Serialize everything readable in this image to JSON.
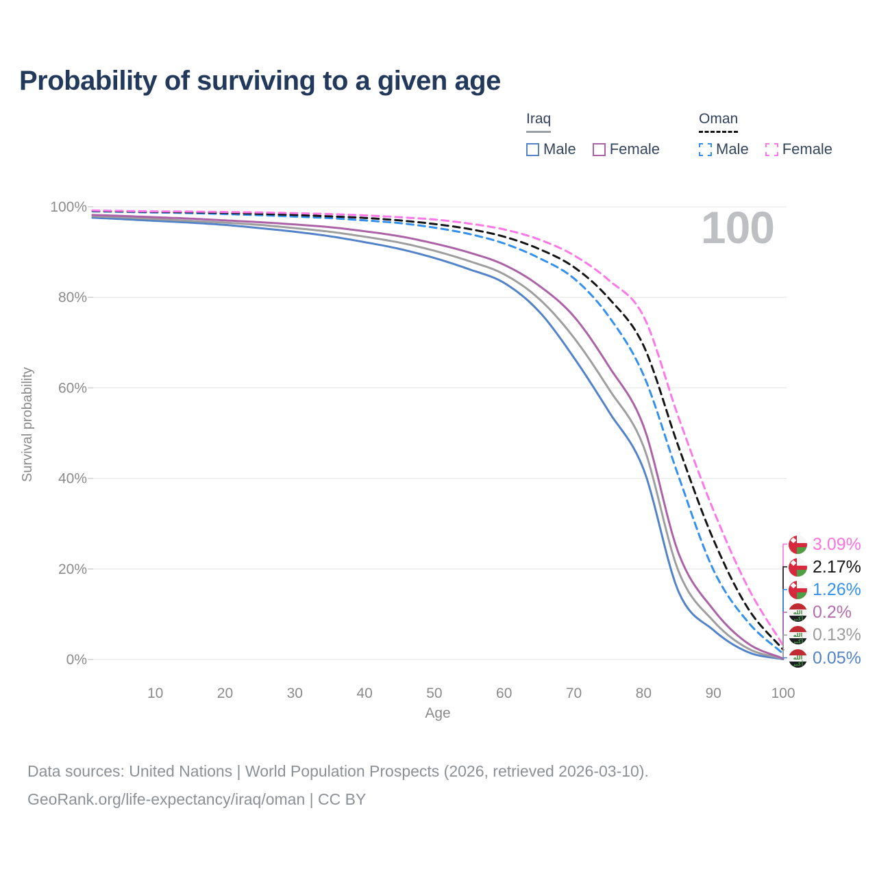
{
  "title": "Probability of surviving to a given age",
  "watermark_age": "100",
  "colors": {
    "title": "#22395c",
    "grid": "#e9e9e9",
    "tick_text": "#8a8a8a",
    "watermark": "#bdbfc2",
    "footer": "#8b9095",
    "iraq_male": "#5282c8",
    "iraq_total": "#9e9e9e",
    "iraq_female": "#ab62a6",
    "oman_male": "#3390ec",
    "oman_total": "#141414",
    "oman_female": "#fb78e6"
  },
  "legend": {
    "groups": [
      {
        "label": "Iraq",
        "line_style": "solid",
        "items": [
          {
            "label": "Male",
            "color": "#5282c8",
            "dashed": false
          },
          {
            "label": "Female",
            "color": "#ab62a6",
            "dashed": false
          }
        ]
      },
      {
        "label": "Oman",
        "line_style": "dashed",
        "items": [
          {
            "label": "Male",
            "color": "#3390ec",
            "dashed": true
          },
          {
            "label": "Female",
            "color": "#fb78e6",
            "dashed": true
          }
        ]
      }
    ]
  },
  "axes": {
    "xlabel": "Age",
    "ylabel": "Survival probability",
    "x_ticks": [
      10,
      20,
      30,
      40,
      50,
      60,
      70,
      80,
      90,
      100
    ],
    "y_ticks": [
      {
        "value": 0,
        "label": "0%"
      },
      {
        "value": 20,
        "label": "20%"
      },
      {
        "value": 40,
        "label": "40%"
      },
      {
        "value": 60,
        "label": "60%"
      },
      {
        "value": 80,
        "label": "80%"
      },
      {
        "value": 100,
        "label": "100%"
      }
    ]
  },
  "chart_data": {
    "type": "line",
    "title": "Probability of surviving to a given age",
    "xlabel": "Age",
    "ylabel": "Survival probability",
    "xlim": [
      1,
      100
    ],
    "ylim": [
      0,
      100
    ],
    "grid": true,
    "legend_position": "top-right",
    "hover_age_indicator": "100",
    "x": [
      1,
      5,
      10,
      15,
      20,
      25,
      30,
      35,
      40,
      45,
      50,
      55,
      60,
      65,
      70,
      75,
      80,
      85,
      90,
      95,
      100
    ],
    "series": [
      {
        "name": "Iraq — Male",
        "country": "Iraq",
        "sex": "Male",
        "color": "#5282c8",
        "dashed": false,
        "values": [
          97.6,
          97.3,
          96.9,
          96.5,
          96.0,
          95.3,
          94.5,
          93.5,
          92.2,
          90.7,
          88.7,
          86.2,
          83.2,
          76.9,
          66.7,
          54.8,
          42.0,
          15.0,
          6.5,
          1.6,
          0.05
        ]
      },
      {
        "name": "Iraq — Both sexes",
        "country": "Iraq",
        "sex": "Both",
        "color": "#9e9e9e",
        "dashed": false,
        "values": [
          97.9,
          97.7,
          97.3,
          96.9,
          96.5,
          96.0,
          95.3,
          94.5,
          93.4,
          92.1,
          90.3,
          88.0,
          85.1,
          79.7,
          71.1,
          59.8,
          47.0,
          19.5,
          8.5,
          2.4,
          0.13
        ]
      },
      {
        "name": "Iraq — Female",
        "country": "Iraq",
        "sex": "Female",
        "color": "#ab62a6",
        "dashed": false,
        "values": [
          98.2,
          98.0,
          97.7,
          97.4,
          97.0,
          96.6,
          96.1,
          95.5,
          94.6,
          93.5,
          91.9,
          89.9,
          87.2,
          82.6,
          75.8,
          64.8,
          51.5,
          23.5,
          11.0,
          3.5,
          0.2
        ]
      },
      {
        "name": "Oman — Male",
        "country": "Oman",
        "sex": "Male",
        "color": "#3390ec",
        "dashed": true,
        "values": [
          99.0,
          98.9,
          98.75,
          98.6,
          98.4,
          98.15,
          97.85,
          97.5,
          97.0,
          96.4,
          95.4,
          94.0,
          91.9,
          88.7,
          84.2,
          75.8,
          62.8,
          40.5,
          19.8,
          8.2,
          1.26
        ]
      },
      {
        "name": "Oman — Both sexes",
        "country": "Oman",
        "sex": "Both",
        "color": "#141414",
        "dashed": true,
        "values": [
          99.1,
          99.0,
          98.9,
          98.8,
          98.65,
          98.45,
          98.2,
          97.9,
          97.55,
          97.0,
          96.2,
          95.1,
          93.4,
          90.7,
          86.7,
          79.8,
          69.3,
          47.0,
          26.5,
          11.2,
          2.17
        ]
      },
      {
        "name": "Oman — Female",
        "country": "Oman",
        "sex": "Female",
        "color": "#fb78e6",
        "dashed": true,
        "values": [
          99.2,
          99.1,
          99.0,
          98.95,
          98.85,
          98.75,
          98.6,
          98.4,
          98.1,
          97.7,
          97.2,
          96.3,
          95.0,
          92.8,
          89.3,
          83.8,
          75.8,
          53.5,
          33.0,
          15.8,
          3.09
        ]
      }
    ]
  },
  "end_labels": [
    {
      "value": "3.09%",
      "number": 3.09,
      "color": "#fb72e2",
      "flag": "oman",
      "series": "Oman — Female"
    },
    {
      "value": "2.17%",
      "number": 2.17,
      "color": "#141414",
      "flag": "oman",
      "series": "Oman — Both sexes"
    },
    {
      "value": "1.26%",
      "number": 1.26,
      "color": "#3390ec",
      "flag": "oman",
      "series": "Oman — Male"
    },
    {
      "value": "0.2%",
      "number": 0.2,
      "color": "#b36cae",
      "flag": "iraq",
      "series": "Iraq — Female"
    },
    {
      "value": "0.13%",
      "number": 0.13,
      "color": "#9c9c9c",
      "flag": "iraq",
      "series": "Iraq — Both sexes"
    },
    {
      "value": "0.05%",
      "number": 0.05,
      "color": "#5282c8",
      "flag": "iraq",
      "series": "Iraq — Male"
    }
  ],
  "iraq_flag_script": "الله أكبر",
  "footer": {
    "line1": "Data sources: United Nations | World Population Prospects (2026, retrieved 2026-03-10).",
    "line2": "GeoRank.org/life-expectancy/iraq/oman | CC BY"
  }
}
